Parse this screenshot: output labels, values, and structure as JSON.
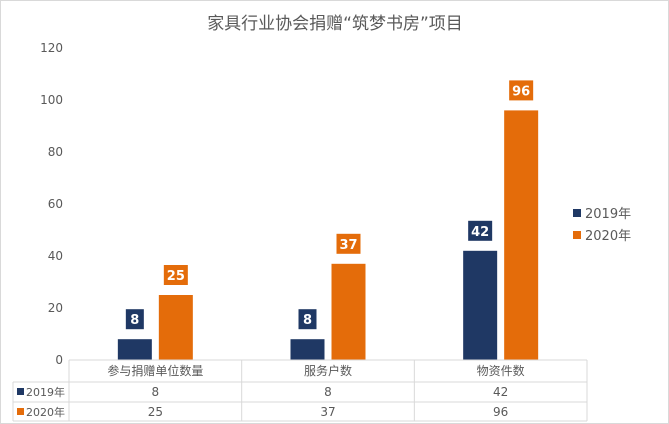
{
  "chart_data": {
    "type": "bar",
    "title": "家具行业协会捐赠“筑梦书房”项目",
    "categories": [
      "参与捐赠单位数量",
      "服务户数",
      "物资件数"
    ],
    "series": [
      {
        "name": "2019年",
        "values": [
          8,
          8,
          42
        ],
        "color": "#1f3864"
      },
      {
        "name": "2020年",
        "values": [
          25,
          37,
          96
        ],
        "color": "#e46c0a"
      }
    ],
    "ylim": [
      0,
      120
    ],
    "yticks": [
      0,
      20,
      40,
      60,
      80,
      100,
      120
    ],
    "grid": false,
    "legend": "right",
    "data_labels": true,
    "data_table": true
  }
}
